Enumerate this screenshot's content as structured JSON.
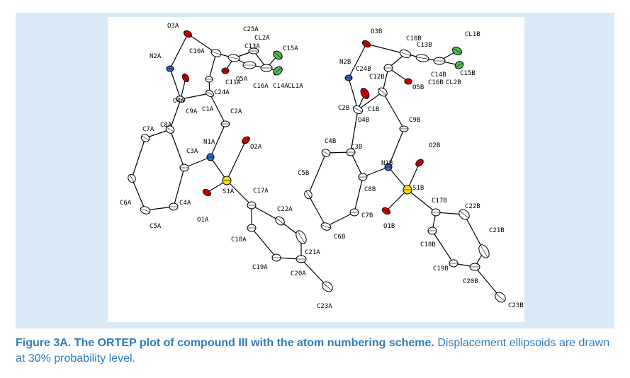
{
  "figure": {
    "atom_labels": [
      "O3A",
      "C25A",
      "CL2A",
      "C10A",
      "C13A",
      "C15A",
      "N2A",
      "O5A",
      "C11A",
      "C16A",
      "C14A",
      "CL1A",
      "C24A",
      "O4A",
      "C9A",
      "C1A",
      "C2A",
      "C7A",
      "C8A",
      "N1A",
      "O2A",
      "C3A",
      "S1A",
      "C17A",
      "C6A",
      "C4A",
      "C22A",
      "C5A",
      "O1A",
      "C18A",
      "C21A",
      "C19A",
      "C20A",
      "C23A",
      "O3B",
      "C10B",
      "CL1B",
      "C13B",
      "N2B",
      "C24B",
      "C12B",
      "C14B",
      "C15B",
      "O5B",
      "C16B",
      "CL2B",
      "C2B",
      "C1B",
      "O4B",
      "C9B",
      "O2B",
      "C4B",
      "C3B",
      "N1B",
      "C5B",
      "C8B",
      "S1B",
      "C17B",
      "C22B",
      "O1B",
      "C7B",
      "C6B",
      "C18B",
      "C21B",
      "C19B",
      "C20B",
      "C23B"
    ],
    "caption": {
      "label": "Figure 3A. The ORTEP plot of compound III with the atom numbering scheme.",
      "text": "Displacement ellipsoids are drawn at 30% probability level."
    }
  }
}
